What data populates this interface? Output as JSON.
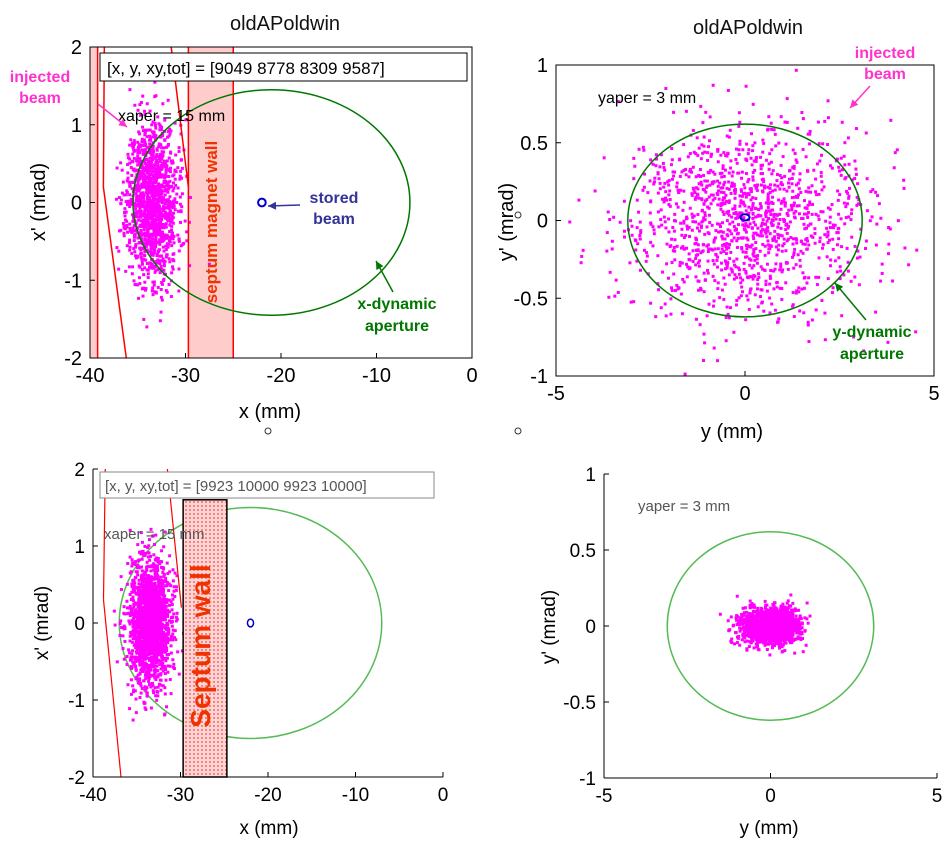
{
  "colors": {
    "injected": "#ff00ff",
    "stored": "#0000cc",
    "aperture_top": "#007700",
    "aperture_bottom": "#55bb55",
    "septum_line": "#ff0000",
    "septum_fill": "#ffcccc",
    "magenta_label": "#ff33cc",
    "green_label": "#007700",
    "blue_label": "#333399",
    "septum_text": "#ee3300"
  },
  "chart_data": [
    {
      "type": "scatter",
      "title": "oldAPoldwin",
      "xlabel": "x (mm)",
      "ylabel": "x' (mrad)",
      "xlim": [
        -40,
        0
      ],
      "ylim": [
        -2,
        2
      ],
      "xticks": [
        "-40",
        "-30",
        "-20",
        "-10",
        "0"
      ],
      "yticks": [
        "-2",
        "-1",
        "0",
        "1",
        "2"
      ],
      "box_text": "[x, y, xy,tot] = [9049  8778  8309  9587]",
      "aper_text": "xaper = 15 mm",
      "series": [
        {
          "kind": "injected",
          "center": [
            -33.5,
            0.0
          ],
          "spread": [
            1.3,
            0.5
          ],
          "count": 1400
        },
        {
          "kind": "stored",
          "center": [
            -22,
            0.0
          ],
          "radius": [
            0.4,
            0.05
          ]
        },
        {
          "kind": "aperture",
          "center": [
            -21,
            0.0
          ],
          "radius": [
            14.5,
            1.45
          ]
        }
      ],
      "septum": {
        "from": -29.7,
        "to": -25,
        "label": "septum magnet wall"
      },
      "annotations": {
        "injected_beam": [
          "injected",
          "beam"
        ],
        "stored_beam": [
          "stored",
          "beam"
        ],
        "dynamic_aperture": [
          "x-dynamic",
          "aperture"
        ]
      }
    },
    {
      "type": "scatter",
      "title": "oldAPoldwin",
      "xlabel": "y (mm)",
      "ylabel": "y' (mrad)",
      "xlim": [
        -5,
        5
      ],
      "ylim": [
        -1,
        1
      ],
      "xticks": [
        "-5",
        "0",
        "5"
      ],
      "yticks": [
        "-1",
        "-0.5",
        "0",
        "0.5",
        "1"
      ],
      "aper_text": "yaper = 3 mm",
      "series": [
        {
          "kind": "injected",
          "center": [
            0.0,
            0.0
          ],
          "spread": [
            1.6,
            0.3
          ],
          "count": 1300
        },
        {
          "kind": "stored",
          "center": [
            0.0,
            0.02
          ],
          "radius": [
            0.12,
            0.02
          ]
        },
        {
          "kind": "aperture",
          "center": [
            0.0,
            0.0
          ],
          "radius": [
            3.1,
            0.62
          ]
        }
      ],
      "annotations": {
        "injected_beam": [
          "injected",
          "beam"
        ],
        "dynamic_aperture": [
          "y-dynamic",
          "aperture"
        ]
      }
    },
    {
      "type": "scatter",
      "xlabel": "x (mm)",
      "ylabel": "x' (mrad)",
      "xlim": [
        -40,
        0
      ],
      "ylim": [
        -2,
        2
      ],
      "xticks": [
        "-40",
        "-30",
        "-20",
        "-10",
        "0"
      ],
      "yticks": [
        "-2",
        "-1",
        "0",
        "1",
        "2"
      ],
      "box_text": "[x, y, xy,tot] = [9923  10000   9923  10000]",
      "aper_text": "xaper = 15 mm",
      "series": [
        {
          "kind": "injected",
          "center": [
            -33.5,
            0.0
          ],
          "spread": [
            1.2,
            0.4
          ],
          "count": 1800
        },
        {
          "kind": "stored",
          "center": [
            -22,
            0.0
          ],
          "radius": [
            0.35,
            0.05
          ]
        },
        {
          "kind": "aperture",
          "center": [
            -22,
            0.0
          ],
          "radius": [
            15,
            1.5
          ]
        }
      ],
      "septum": {
        "from": -29.7,
        "to": -24.7,
        "label": "Septum wall"
      }
    },
    {
      "type": "scatter",
      "xlabel": "y (mm)",
      "ylabel": "y' (mrad)",
      "xlim": [
        -5,
        5
      ],
      "ylim": [
        -1,
        1
      ],
      "xticks": [
        "-5",
        "0",
        "5"
      ],
      "yticks": [
        "-1",
        "-0.5",
        "0",
        "0.5",
        "1"
      ],
      "aper_text": "yaper = 3 mm",
      "series": [
        {
          "kind": "injected",
          "center": [
            0.0,
            0.0
          ],
          "spread": [
            0.45,
            0.06
          ],
          "count": 1500
        },
        {
          "kind": "aperture",
          "center": [
            0.0,
            0.0
          ],
          "radius": [
            3.1,
            0.62
          ]
        }
      ]
    }
  ]
}
